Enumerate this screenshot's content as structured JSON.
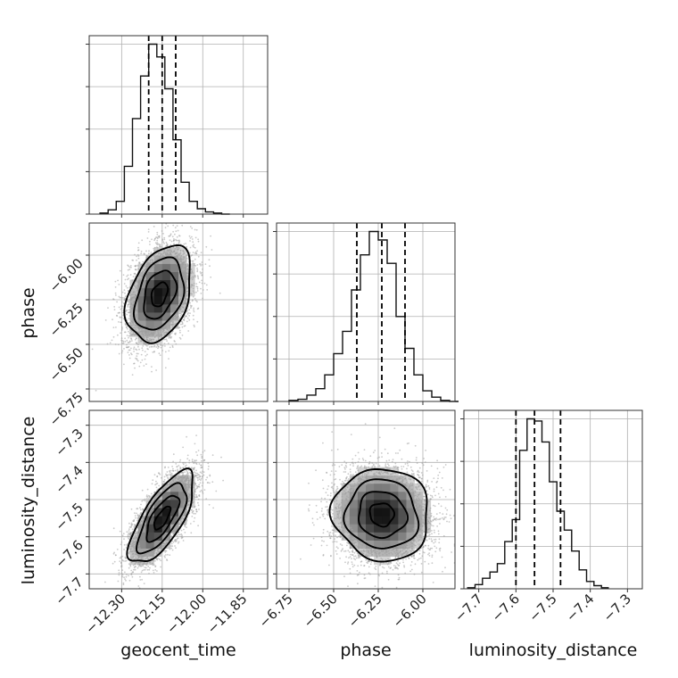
{
  "chart_data": {
    "type": "corner",
    "parameters": [
      "geocent_time",
      "phase",
      "luminosity_distance"
    ],
    "colors": {
      "line": "#111111",
      "grid": "#b0b0b0",
      "sample": "#9e9e9e",
      "density_dark": "#111111"
    },
    "grid": true,
    "axes": {
      "geocent_time": {
        "range": [
          -12.42,
          -11.76
        ],
        "ticks": [
          -12.3,
          -12.15,
          -12.0,
          -11.85
        ],
        "tick_labels": [
          "−12.30",
          "−12.15",
          "−12.00",
          "−11.85"
        ]
      },
      "phase": {
        "range": [
          -6.82,
          -5.82
        ],
        "ticks": [
          -6.75,
          -6.5,
          -6.25,
          -6.0
        ],
        "tick_labels": [
          "−6.75",
          "−6.50",
          "−6.25",
          "−6.00"
        ]
      },
      "luminosity_distance": {
        "range": [
          -7.74,
          -7.26
        ],
        "ticks": [
          -7.7,
          -7.6,
          -7.5,
          -7.4,
          -7.3
        ],
        "tick_labels": [
          "−7.7",
          "−7.6",
          "−7.5",
          "−7.4",
          "−7.3"
        ]
      }
    },
    "marginals": [
      {
        "param": "geocent_time",
        "bin_edges": [
          -12.38,
          -12.35,
          -12.32,
          -12.29,
          -12.26,
          -12.23,
          -12.2,
          -12.17,
          -12.14,
          -12.11,
          -12.08,
          -12.05,
          -12.02,
          -11.99,
          -11.96,
          -11.93,
          -11.9
        ],
        "counts": [
          1,
          4,
          12,
          45,
          90,
          130,
          160,
          148,
          118,
          70,
          30,
          12,
          5,
          2,
          1,
          0
        ],
        "quantiles": [
          -12.2,
          -12.15,
          -12.1
        ]
      },
      {
        "param": "phase",
        "bin_edges": [
          -6.75,
          -6.7,
          -6.65,
          -6.6,
          -6.55,
          -6.5,
          -6.45,
          -6.4,
          -6.35,
          -6.3,
          -6.25,
          -6.2,
          -6.15,
          -6.1,
          -6.05,
          -6.0,
          -5.95,
          -5.9,
          -5.85,
          -5.8
        ],
        "counts": [
          1,
          2,
          6,
          12,
          25,
          45,
          66,
          105,
          138,
          160,
          152,
          130,
          80,
          50,
          25,
          10,
          4,
          1,
          0
        ],
        "quantiles": [
          -6.37,
          -6.23,
          -6.1
        ]
      },
      {
        "param": "luminosity_distance",
        "bin_edges": [
          -7.73,
          -7.71,
          -7.69,
          -7.67,
          -7.65,
          -7.63,
          -7.61,
          -7.59,
          -7.57,
          -7.55,
          -7.53,
          -7.51,
          -7.49,
          -7.47,
          -7.45,
          -7.43,
          -7.41,
          -7.39,
          -7.37,
          -7.35
        ],
        "counts": [
          1,
          4,
          10,
          16,
          24,
          45,
          66,
          132,
          162,
          160,
          140,
          102,
          74,
          56,
          36,
          18,
          7,
          3,
          1
        ],
        "quantiles": [
          -7.6,
          -7.55,
          -7.48
        ]
      }
    ],
    "pairs": [
      {
        "x": "geocent_time",
        "y": "phase",
        "center": [
          -12.16,
          -6.22
        ],
        "sigma": [
          0.06,
          0.135
        ],
        "rho": 0.35,
        "samples": 4500
      },
      {
        "x": "geocent_time",
        "y": "luminosity_distance",
        "center": [
          -12.15,
          -7.55
        ],
        "sigma": [
          0.06,
          0.062
        ],
        "rho": 0.72,
        "samples": 4500
      },
      {
        "x": "phase",
        "y": "luminosity_distance",
        "center": [
          -6.23,
          -7.54
        ],
        "sigma": [
          0.135,
          0.062
        ],
        "rho": -0.05,
        "samples": 4500
      }
    ],
    "contour_levels_sigma": [
      0.5,
      1.0,
      1.5,
      2.0
    ]
  }
}
